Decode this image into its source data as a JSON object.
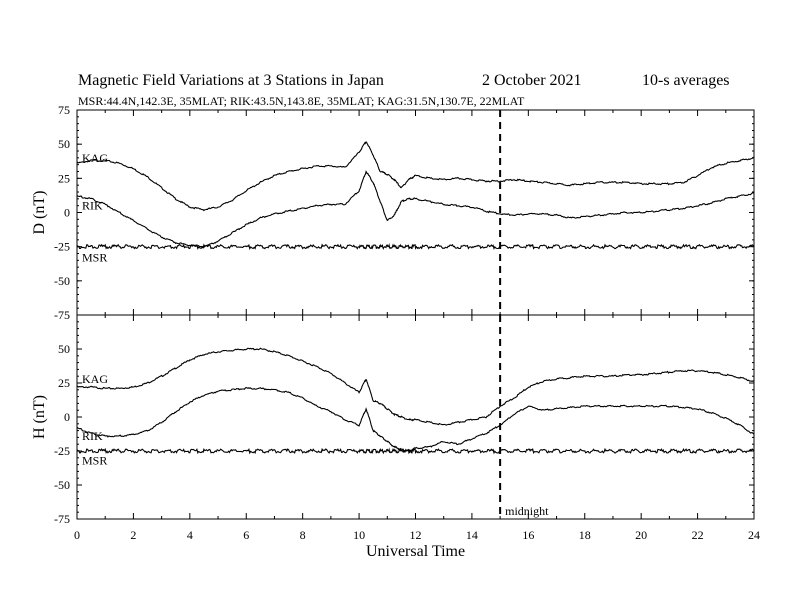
{
  "header": {
    "title_main": "Magnetic Field Variations at 3 Stations in Japan",
    "title_date": "2   October 2021",
    "title_avg": "10-s averages",
    "subtitle": "MSR:44.4N,142.3E, 35MLAT;  RIK:43.5N,143.8E, 35MLAT;  KAG:31.5N,130.7E, 22MLAT"
  },
  "chart_data": [
    {
      "type": "line",
      "panel": "top",
      "ylabel": "D (nT)",
      "xlabel": "",
      "xlim": [
        0,
        24
      ],
      "ylim": [
        -75,
        75
      ],
      "yticks": [
        75,
        50,
        25,
        0,
        -25,
        -50,
        -75
      ],
      "xticks": [
        0,
        2,
        4,
        6,
        8,
        10,
        12,
        14,
        16,
        18,
        20,
        22,
        24
      ],
      "midnight_x": 15,
      "x": [
        0,
        0.5,
        1,
        1.5,
        2,
        2.5,
        3,
        3.5,
        4,
        4.5,
        5,
        5.5,
        6,
        6.5,
        7,
        7.5,
        8,
        8.5,
        9,
        9.5,
        10,
        10.25,
        10.5,
        10.75,
        11,
        11.25,
        11.5,
        11.75,
        12,
        12.5,
        13,
        13.5,
        14,
        14.5,
        15,
        15.5,
        16,
        16.5,
        17,
        17.5,
        18,
        18.5,
        19,
        19.5,
        20,
        20.5,
        21,
        21.5,
        22,
        22.5,
        23,
        23.5,
        24
      ],
      "series": [
        {
          "name": "KAG",
          "label_y": 40,
          "values": [
            36,
            38,
            38,
            36,
            32,
            26,
            18,
            10,
            4,
            2,
            4,
            9,
            16,
            22,
            27,
            30,
            32,
            34,
            34,
            33,
            44,
            52,
            42,
            30,
            28,
            24,
            18,
            24,
            27,
            25,
            24,
            25,
            24,
            23,
            23,
            24,
            23,
            22,
            21,
            20,
            21,
            22,
            22,
            22,
            21,
            21,
            21,
            22,
            27,
            33,
            36,
            38,
            40
          ]
        },
        {
          "name": "RIK",
          "label_y": 5,
          "values": [
            12,
            10,
            6,
            0,
            -6,
            -12,
            -18,
            -22,
            -24,
            -25,
            -21,
            -15,
            -9,
            -4,
            -1,
            1,
            3,
            5,
            6,
            6,
            16,
            30,
            22,
            8,
            -6,
            -2,
            8,
            10,
            10,
            8,
            6,
            5,
            4,
            1,
            -1,
            -2,
            -1,
            -1,
            -2,
            -4,
            -3,
            -2,
            -1,
            0,
            0,
            1,
            2,
            3,
            5,
            7,
            10,
            12,
            14
          ]
        },
        {
          "name": "MSR",
          "label_y": -33,
          "values": [
            -25,
            -25,
            -25,
            -25,
            -25,
            -25,
            -25,
            -25,
            -25,
            -25,
            -25,
            -25,
            -25,
            -25,
            -25,
            -25,
            -25,
            -25,
            -25,
            -25,
            -25,
            -25,
            -25,
            -25,
            -25,
            -25,
            -25,
            -25,
            -25,
            -25,
            -25,
            -25,
            -25,
            -25,
            -25,
            -25,
            -25,
            -25,
            -25,
            -25,
            -25,
            -25,
            -25,
            -25,
            -25,
            -25,
            -25,
            -25,
            -25,
            -25,
            -25,
            -25,
            -25
          ]
        }
      ]
    },
    {
      "type": "line",
      "panel": "bottom",
      "ylabel": "H (nT)",
      "xlabel": "Universal Time",
      "xlim": [
        0,
        24
      ],
      "ylim": [
        -75,
        75
      ],
      "yticks": [
        75,
        50,
        25,
        0,
        -25,
        -50,
        -75
      ],
      "xticks": [
        0,
        2,
        4,
        6,
        8,
        10,
        12,
        14,
        16,
        18,
        20,
        22,
        24
      ],
      "midnight_x": 15,
      "midnight_label": "midnight",
      "x": [
        0,
        0.5,
        1,
        1.5,
        2,
        2.5,
        3,
        3.5,
        4,
        4.5,
        5,
        5.5,
        6,
        6.5,
        7,
        7.5,
        8,
        8.5,
        9,
        9.5,
        10,
        10.25,
        10.5,
        10.75,
        11,
        11.25,
        11.5,
        11.75,
        12,
        12.5,
        13,
        13.5,
        14,
        14.5,
        15,
        15.5,
        16,
        16.5,
        17,
        17.5,
        18,
        18.5,
        19,
        19.5,
        20,
        20.5,
        21,
        21.5,
        22,
        22.5,
        23,
        23.5,
        24
      ],
      "series": [
        {
          "name": "KAG",
          "label_y": 28,
          "values": [
            22,
            22,
            21,
            21,
            22,
            25,
            30,
            36,
            42,
            46,
            48,
            49,
            50,
            50,
            48,
            45,
            41,
            37,
            32,
            25,
            18,
            28,
            12,
            10,
            6,
            2,
            0,
            -2,
            -2,
            -4,
            -6,
            -4,
            -2,
            0,
            8,
            14,
            22,
            26,
            28,
            29,
            30,
            30,
            30,
            31,
            31,
            32,
            33,
            34,
            34,
            33,
            31,
            29,
            26
          ]
        },
        {
          "name": "RIK",
          "label_y": -14,
          "values": [
            -8,
            -12,
            -14,
            -14,
            -13,
            -10,
            -4,
            4,
            11,
            16,
            19,
            20,
            21,
            21,
            20,
            18,
            14,
            8,
            4,
            -2,
            -6,
            6,
            -10,
            -14,
            -18,
            -22,
            -24,
            -25,
            -23,
            -22,
            -18,
            -20,
            -16,
            -12,
            -6,
            2,
            8,
            5,
            6,
            7,
            8,
            8,
            8,
            8,
            8,
            8,
            8,
            7,
            6,
            3,
            -1,
            -6,
            -13
          ]
        },
        {
          "name": "MSR",
          "label_y": -32,
          "values": [
            -25,
            -25,
            -25,
            -25,
            -25,
            -25,
            -25,
            -25,
            -25,
            -25,
            -25,
            -25,
            -25,
            -25,
            -25,
            -25,
            -25,
            -25,
            -25,
            -25,
            -25,
            -25,
            -25,
            -25,
            -25,
            -25,
            -25,
            -25,
            -25,
            -25,
            -25,
            -25,
            -25,
            -25,
            -25,
            -25,
            -25,
            -25,
            -25,
            -25,
            -25,
            -25,
            -25,
            -25,
            -25,
            -25,
            -25,
            -25,
            -25,
            -25,
            -25,
            -25,
            -25
          ]
        }
      ]
    }
  ]
}
